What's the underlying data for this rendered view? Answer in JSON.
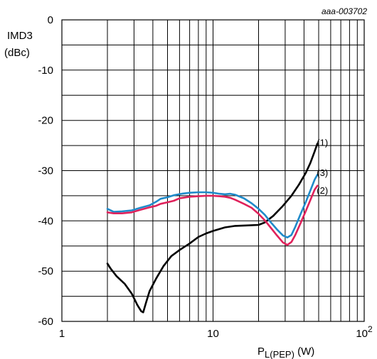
{
  "chart_data": {
    "type": "line",
    "doc_id": "aaa-003702",
    "ylabel_line1": "IMD3",
    "ylabel_line2": "(dBc)",
    "xlabel_main": "P",
    "xlabel_sub": "L(PEP)",
    "xlabel_unit": " (W)",
    "x_scale": "log",
    "xlim": [
      1,
      100
    ],
    "ylim": [
      -60,
      0
    ],
    "grid": true,
    "x_ticks": [
      {
        "value": 1,
        "base": "1",
        "exp": ""
      },
      {
        "value": 10,
        "base": "10",
        "exp": ""
      },
      {
        "value": 100,
        "base": "10",
        "exp": "2"
      }
    ],
    "y_ticks": [
      {
        "value": 0,
        "label": "0"
      },
      {
        "value": -10,
        "label": "-10"
      },
      {
        "value": -20,
        "label": "-20"
      },
      {
        "value": -30,
        "label": "-30"
      },
      {
        "value": -40,
        "label": "-40"
      },
      {
        "value": -50,
        "label": "-50"
      },
      {
        "value": -60,
        "label": "-60"
      }
    ],
    "series": [
      {
        "name": "(1)",
        "color": "#000000",
        "label_at": [
          47,
          -24.5
        ],
        "points": [
          [
            2.0,
            -48.5
          ],
          [
            2.1,
            -49.5
          ],
          [
            2.3,
            -51.0
          ],
          [
            2.6,
            -52.5
          ],
          [
            2.9,
            -54.5
          ],
          [
            3.15,
            -56.7
          ],
          [
            3.35,
            -58.0
          ],
          [
            3.45,
            -58.2
          ],
          [
            3.6,
            -56.3
          ],
          [
            3.8,
            -54.0
          ],
          [
            4.2,
            -51.5
          ],
          [
            4.7,
            -49.0
          ],
          [
            5.3,
            -47.0
          ],
          [
            6.0,
            -45.8
          ],
          [
            7.0,
            -44.5
          ],
          [
            8.0,
            -43.2
          ],
          [
            9.0,
            -42.5
          ],
          [
            10.0,
            -42.0
          ],
          [
            12.0,
            -41.3
          ],
          [
            14.0,
            -41.0
          ],
          [
            17.0,
            -40.9
          ],
          [
            20.0,
            -40.8
          ],
          [
            22.0,
            -40.3
          ],
          [
            25.0,
            -39.0
          ],
          [
            29.0,
            -37.0
          ],
          [
            33.0,
            -35.0
          ],
          [
            37.0,
            -32.8
          ],
          [
            41.0,
            -30.5
          ],
          [
            44.0,
            -28.5
          ],
          [
            47.0,
            -26.2
          ],
          [
            49.0,
            -24.6
          ]
        ]
      },
      {
        "name": "(3)",
        "color": "#1f8ac9",
        "label_at": [
          47,
          -30.5
        ],
        "points": [
          [
            2.0,
            -37.6
          ],
          [
            2.2,
            -38.2
          ],
          [
            2.5,
            -38.1
          ],
          [
            2.9,
            -37.9
          ],
          [
            3.3,
            -37.4
          ],
          [
            3.8,
            -36.9
          ],
          [
            4.2,
            -36.2
          ],
          [
            4.5,
            -35.6
          ],
          [
            5.0,
            -35.3
          ],
          [
            5.5,
            -34.9
          ],
          [
            6.2,
            -34.6
          ],
          [
            7.0,
            -34.4
          ],
          [
            8.0,
            -34.3
          ],
          [
            9.0,
            -34.3
          ],
          [
            10.0,
            -34.4
          ],
          [
            11.0,
            -34.6
          ],
          [
            12.0,
            -34.7
          ],
          [
            13.0,
            -34.6
          ],
          [
            14.0,
            -34.8
          ],
          [
            16.0,
            -35.5
          ],
          [
            18.0,
            -36.5
          ],
          [
            20.0,
            -37.6
          ],
          [
            22.0,
            -38.8
          ],
          [
            24.0,
            -40.2
          ],
          [
            26.5,
            -41.7
          ],
          [
            29.0,
            -42.9
          ],
          [
            31.0,
            -43.3
          ],
          [
            33.0,
            -42.8
          ],
          [
            35.0,
            -41.2
          ],
          [
            38.0,
            -38.6
          ],
          [
            41.0,
            -36.3
          ],
          [
            44.0,
            -34.0
          ],
          [
            47.0,
            -31.8
          ],
          [
            49.0,
            -30.8
          ]
        ]
      },
      {
        "name": "(2)",
        "color": "#e0215b",
        "label_at": [
          47,
          -34.0
        ],
        "points": [
          [
            2.0,
            -38.3
          ],
          [
            2.2,
            -38.5
          ],
          [
            2.5,
            -38.5
          ],
          [
            2.9,
            -38.3
          ],
          [
            3.3,
            -37.8
          ],
          [
            3.8,
            -37.3
          ],
          [
            4.2,
            -37.0
          ],
          [
            4.5,
            -36.6
          ],
          [
            5.0,
            -36.3
          ],
          [
            5.5,
            -36.0
          ],
          [
            6.0,
            -35.5
          ],
          [
            7.0,
            -35.2
          ],
          [
            8.0,
            -35.1
          ],
          [
            9.0,
            -35.0
          ],
          [
            10.0,
            -35.0
          ],
          [
            11.0,
            -35.1
          ],
          [
            12.0,
            -35.2
          ],
          [
            13.0,
            -35.4
          ],
          [
            14.0,
            -35.8
          ],
          [
            16.0,
            -36.6
          ],
          [
            18.0,
            -37.4
          ],
          [
            20.0,
            -38.6
          ],
          [
            22.0,
            -39.9
          ],
          [
            24.0,
            -41.3
          ],
          [
            26.5,
            -42.9
          ],
          [
            29.0,
            -44.3
          ],
          [
            31.0,
            -44.8
          ],
          [
            33.0,
            -44.2
          ],
          [
            35.0,
            -42.8
          ],
          [
            38.0,
            -40.4
          ],
          [
            41.0,
            -38.1
          ],
          [
            44.0,
            -35.9
          ],
          [
            47.0,
            -33.8
          ],
          [
            49.0,
            -33.0
          ]
        ]
      }
    ]
  }
}
